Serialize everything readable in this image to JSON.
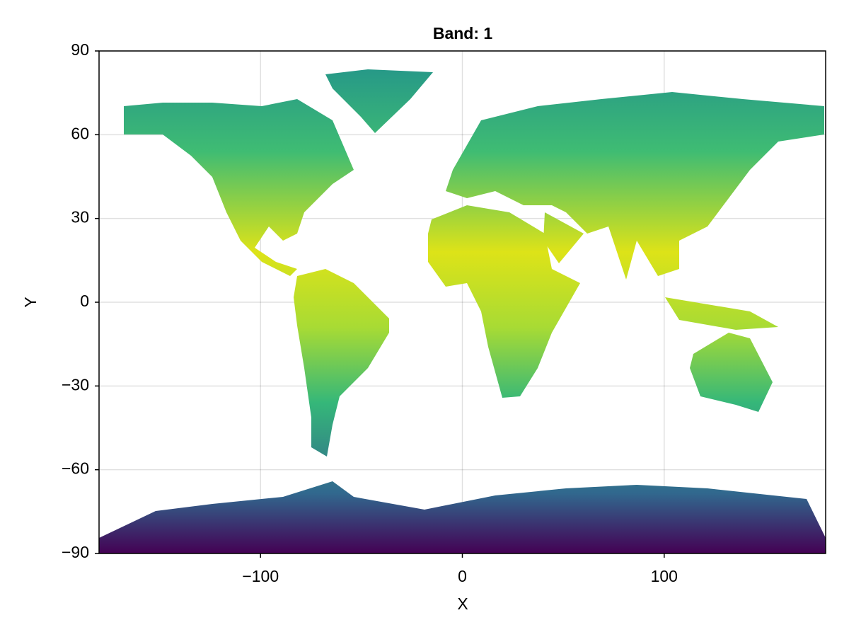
{
  "chart_data": {
    "type": "heatmap",
    "title": "Band: 1",
    "x_label": "X",
    "y_label": "Y",
    "xlim": [
      -180,
      180
    ],
    "xticks": [
      {
        "value": -100,
        "label": "−100"
      },
      0,
      100
    ],
    "ylim": [
      -90,
      90
    ],
    "yticks": [
      {
        "value": -90,
        "label": "−90"
      },
      {
        "value": -60,
        "label": "−60"
      },
      {
        "value": -30,
        "label": "−30"
      },
      0,
      30,
      60,
      90
    ],
    "grid": true
  }
}
